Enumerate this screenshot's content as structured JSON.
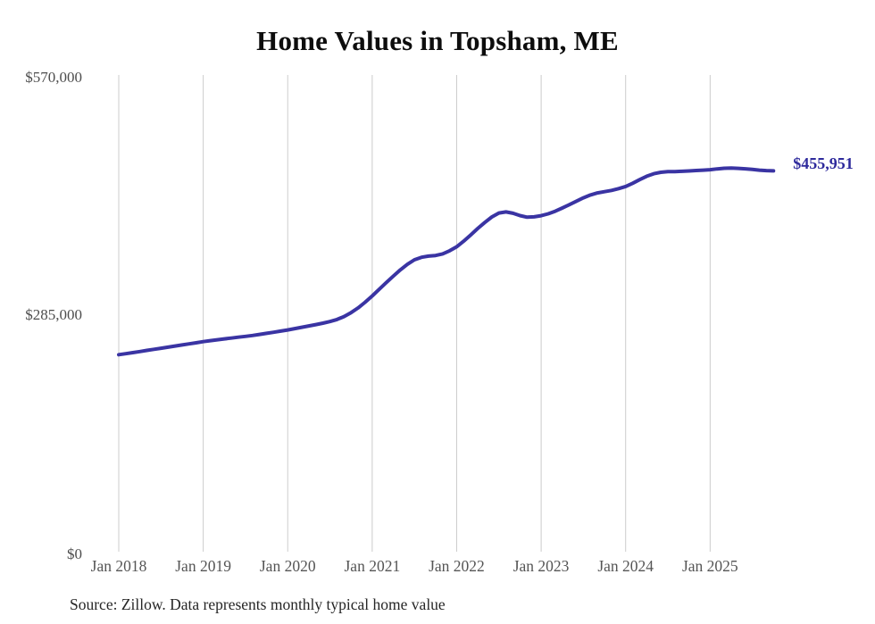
{
  "chart": {
    "title": "Home Values in Topsham, ME",
    "end_label": "$455,951",
    "source_note": "Source: Zillow. Data represents monthly typical home value",
    "colors": {
      "line": "#3a34a3",
      "end_label": "#2e2a9c",
      "grid": "#cccccc",
      "y_axis_text": "#4d4d4d",
      "x_axis_text": "#555555",
      "title_text": "#0d0d0d",
      "source_text": "#262626",
      "background": "#ffffff"
    }
  },
  "chart_data": {
    "type": "line",
    "title": "Home Values in Topsham, ME",
    "frequency": "monthly",
    "x_start_month": "Jan 2018",
    "x_end_month": "Oct 2025",
    "x_tick_labels": [
      "Jan 2018",
      "Jan 2019",
      "Jan 2020",
      "Jan 2021",
      "Jan 2022",
      "Jan 2023",
      "Jan 2024",
      "Jan 2025"
    ],
    "y_tick_labels": [
      "$0",
      "$285,000",
      "$570,000"
    ],
    "ylim": [
      0,
      570000
    ],
    "unit": "USD",
    "grid": "vertical-only",
    "legend": "none",
    "last_value": 455951,
    "last_value_label": "$455,951",
    "series": [
      {
        "name": "Typical home value",
        "values": [
          237400,
          238600,
          239900,
          241200,
          242500,
          243800,
          245100,
          246400,
          247700,
          249000,
          250300,
          251600,
          252900,
          254100,
          255200,
          256200,
          257200,
          258200,
          259200,
          260300,
          261500,
          262800,
          264100,
          265500,
          266900,
          268400,
          270000,
          271600,
          273200,
          274900,
          276800,
          279300,
          282800,
          287400,
          293100,
          299900,
          307300,
          315100,
          323100,
          330900,
          338300,
          344900,
          350300,
          353300,
          354600,
          355400,
          357300,
          361000,
          365800,
          372500,
          379900,
          387500,
          394700,
          401200,
          405900,
          407200,
          405600,
          402800,
          400900,
          401300,
          402700,
          404900,
          408000,
          411800,
          415800,
          419900,
          423900,
          427300,
          429800,
          431300,
          432800,
          434900,
          437400,
          441200,
          445600,
          449600,
          452600,
          454300,
          455000,
          455200,
          455500,
          455900,
          456400,
          456900,
          457400,
          458300,
          459100,
          459300,
          459000,
          458400,
          457700,
          456900,
          456300,
          455951
        ]
      }
    ]
  }
}
